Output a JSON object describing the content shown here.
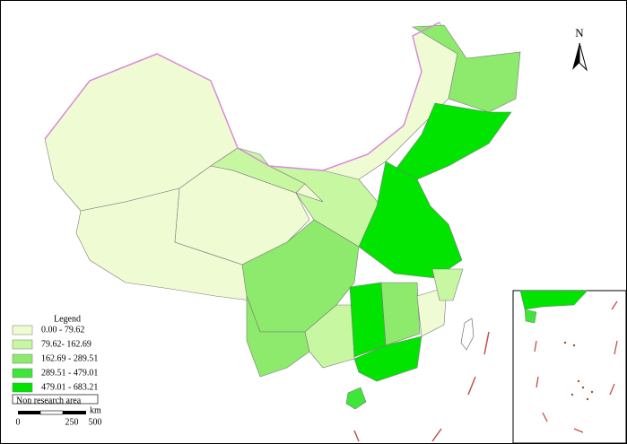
{
  "map": {
    "north_label": "N",
    "legend": {
      "title": "Legend",
      "items": [
        {
          "label": "0.00 - 79.62",
          "color": "#effcd3"
        },
        {
          "label": "79.62- 162.69",
          "color": "#c8f7a2"
        },
        {
          "label": "162.69 - 289.51",
          "color": "#8eea6c"
        },
        {
          "label": "289.51 - 479.01",
          "color": "#3fe63a"
        },
        {
          "label": "479.01 - 683.21",
          "color": "#00e400"
        }
      ],
      "non_research": "Non research area"
    },
    "scale": {
      "labels": [
        "0",
        "250",
        "500"
      ],
      "unit": "km"
    }
  }
}
